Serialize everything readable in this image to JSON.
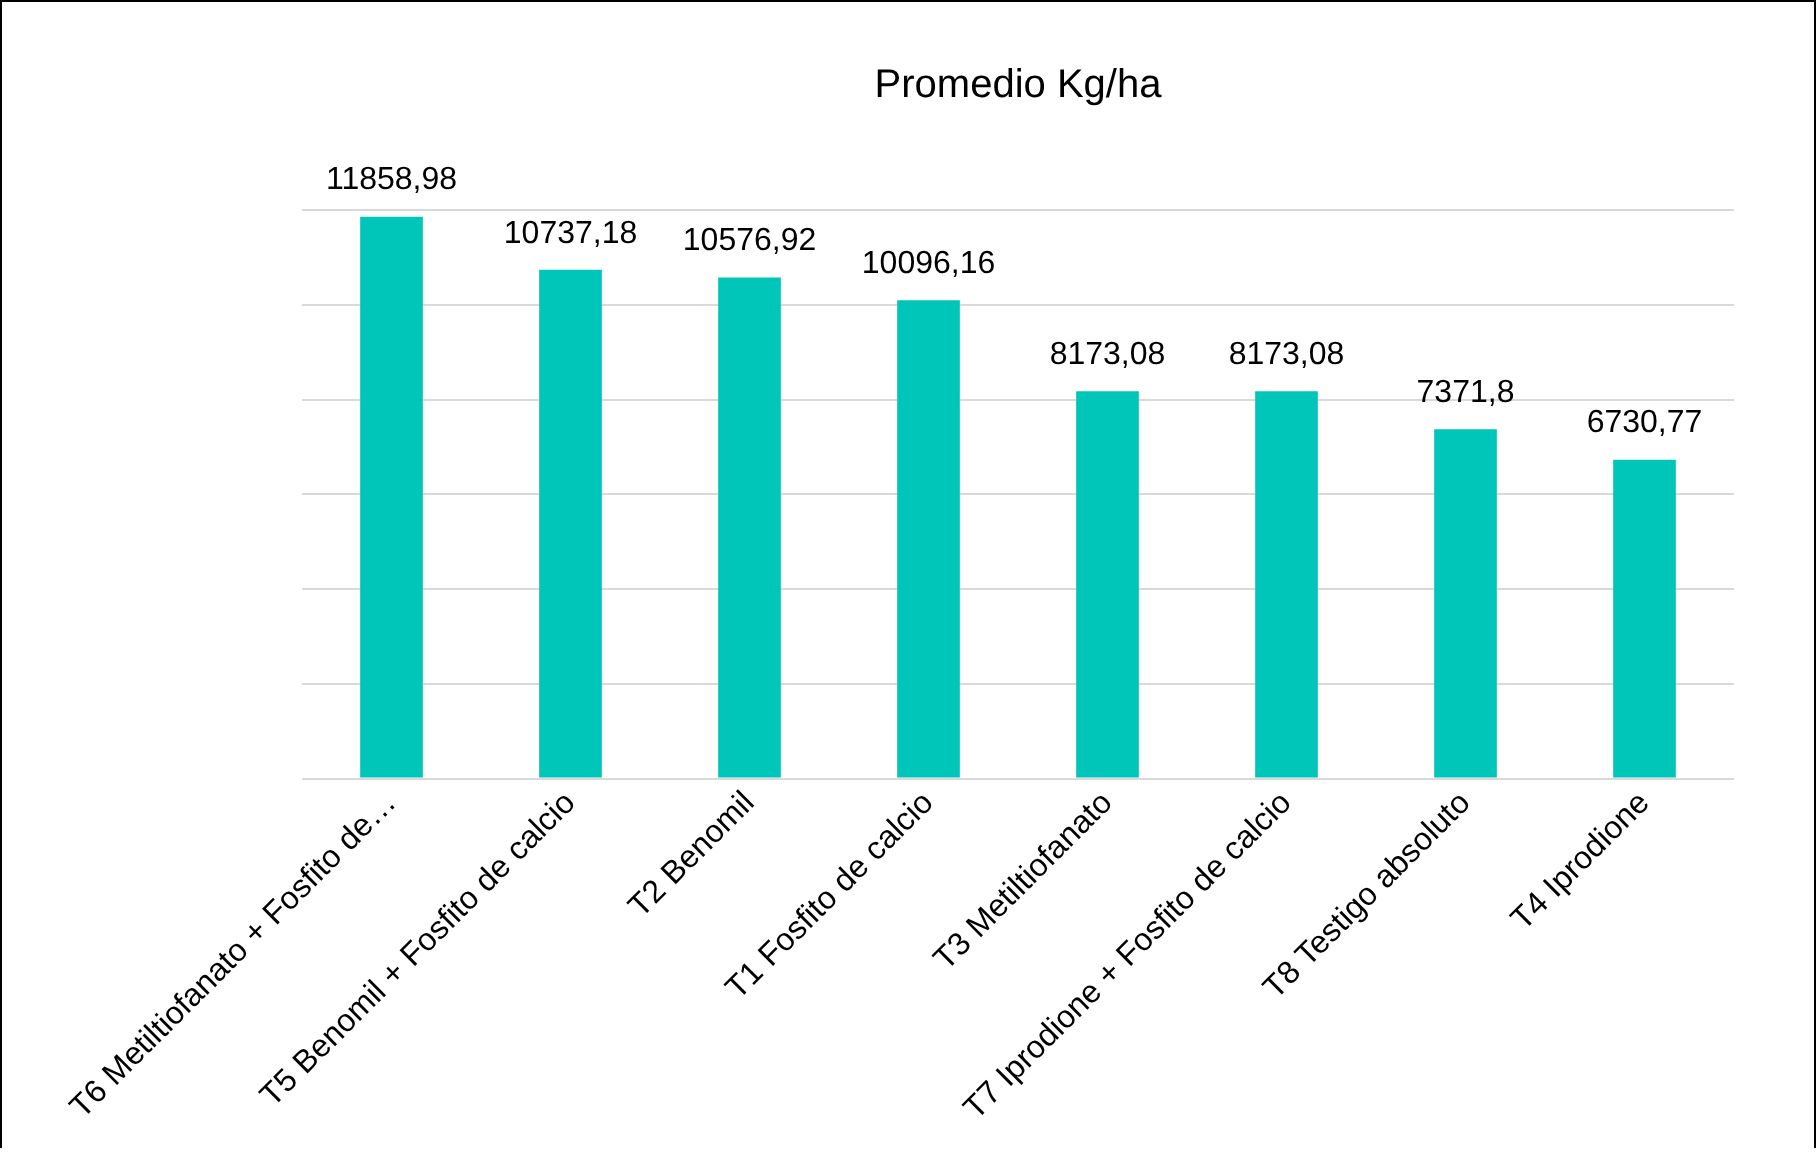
{
  "chart_data": {
    "type": "bar",
    "title": "Promedio Kg/ha",
    "categories": [
      "T6 Metiltiofanato + Fosfito de…",
      "T5 Benomil + Fosfito de calcio",
      "T2 Benomil",
      "T1 Fosfito de calcio",
      "T3 Metiltiofanato",
      "T7 Iprodione + Fosfito de calcio",
      "T8 Testigo absoluto",
      "T4 Iprodione"
    ],
    "values": [
      11858.98,
      10737.18,
      10576.92,
      10096.16,
      8173.08,
      8173.08,
      7371.8,
      6730.77
    ],
    "value_labels": [
      "11858,98",
      "10737,18",
      "10576,92",
      "10096,16",
      "8173,08",
      "8173,08",
      "7371,8",
      "6730,77"
    ],
    "color": "#00c6b9",
    "ylim": [
      0,
      12000
    ],
    "yticks": [
      {
        "value": 0,
        "label": null
      },
      {
        "value": 2000,
        "label": null
      },
      {
        "value": 4000,
        "label": null
      },
      {
        "value": 6000,
        "label": null
      },
      {
        "value": 8000,
        "label": null
      },
      {
        "value": 10000,
        "label": null
      },
      {
        "value": 12000,
        "label": null
      }
    ],
    "grid": "y",
    "legend": false,
    "tick_labels": "x"
  }
}
